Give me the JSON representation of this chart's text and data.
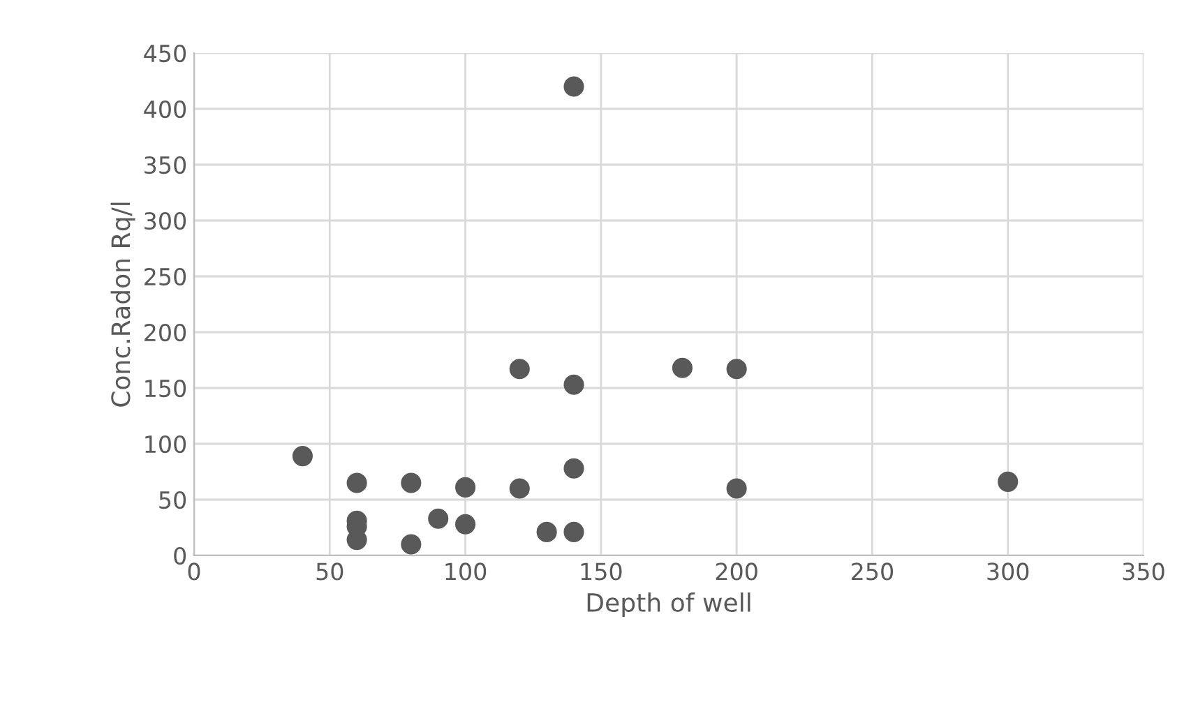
{
  "chart_data": {
    "type": "scatter",
    "xlabel": "Depth of well",
    "ylabel": "Conc.Radon Rq/l",
    "x": [
      40,
      60,
      60,
      60,
      60,
      80,
      80,
      90,
      100,
      100,
      120,
      120,
      130,
      140,
      140,
      140,
      140,
      180,
      200,
      200,
      300
    ],
    "series": [
      {
        "color": "#595959",
        "values": [
          89,
          65,
          31,
          26,
          14,
          65,
          10,
          33,
          61,
          28,
          167,
          60,
          21,
          153,
          78,
          21,
          420,
          168,
          167,
          60,
          66
        ]
      }
    ],
    "xlim": [
      0,
      350
    ],
    "xticks": [
      0,
      50,
      100,
      150,
      200,
      250,
      300,
      350
    ],
    "ylim": [
      0,
      450
    ],
    "yticks": [
      0,
      50,
      100,
      150,
      200,
      250,
      300,
      350,
      400,
      450
    ],
    "grid": true,
    "marker": "circle"
  }
}
